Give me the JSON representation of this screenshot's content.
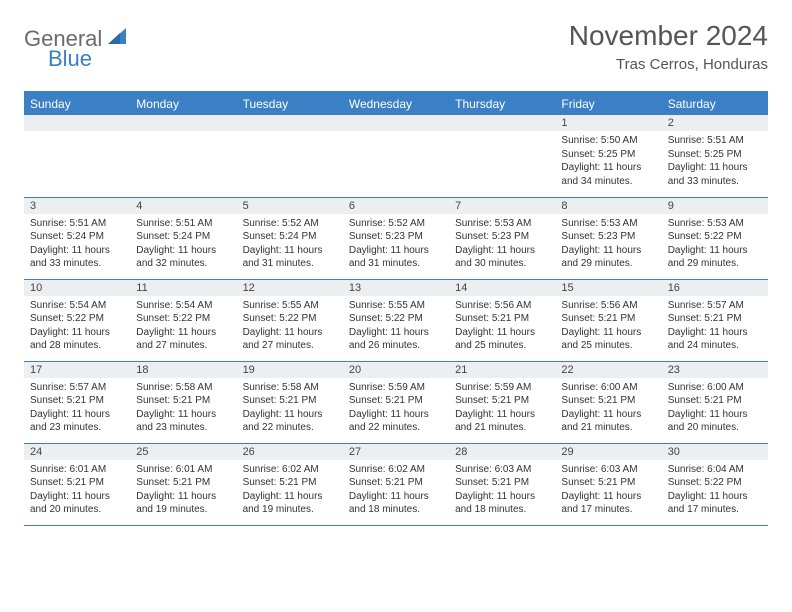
{
  "brand": {
    "part1": "General",
    "part2": "Blue"
  },
  "title": "November 2024",
  "location": "Tras Cerros, Honduras",
  "colors": {
    "accent": "#3b7fc4",
    "header_bg": "#3b7fc4",
    "header_text": "#ffffff",
    "daynum_bg": "#eceff1",
    "border": "#3b7fc4",
    "logo_gray": "#6b6b6b"
  },
  "weekdays": [
    "Sunday",
    "Monday",
    "Tuesday",
    "Wednesday",
    "Thursday",
    "Friday",
    "Saturday"
  ],
  "weeks": [
    [
      {
        "n": "",
        "lines": []
      },
      {
        "n": "",
        "lines": []
      },
      {
        "n": "",
        "lines": []
      },
      {
        "n": "",
        "lines": []
      },
      {
        "n": "",
        "lines": []
      },
      {
        "n": "1",
        "lines": [
          "Sunrise: 5:50 AM",
          "Sunset: 5:25 PM",
          "Daylight: 11 hours and 34 minutes."
        ]
      },
      {
        "n": "2",
        "lines": [
          "Sunrise: 5:51 AM",
          "Sunset: 5:25 PM",
          "Daylight: 11 hours and 33 minutes."
        ]
      }
    ],
    [
      {
        "n": "3",
        "lines": [
          "Sunrise: 5:51 AM",
          "Sunset: 5:24 PM",
          "Daylight: 11 hours and 33 minutes."
        ]
      },
      {
        "n": "4",
        "lines": [
          "Sunrise: 5:51 AM",
          "Sunset: 5:24 PM",
          "Daylight: 11 hours and 32 minutes."
        ]
      },
      {
        "n": "5",
        "lines": [
          "Sunrise: 5:52 AM",
          "Sunset: 5:24 PM",
          "Daylight: 11 hours and 31 minutes."
        ]
      },
      {
        "n": "6",
        "lines": [
          "Sunrise: 5:52 AM",
          "Sunset: 5:23 PM",
          "Daylight: 11 hours and 31 minutes."
        ]
      },
      {
        "n": "7",
        "lines": [
          "Sunrise: 5:53 AM",
          "Sunset: 5:23 PM",
          "Daylight: 11 hours and 30 minutes."
        ]
      },
      {
        "n": "8",
        "lines": [
          "Sunrise: 5:53 AM",
          "Sunset: 5:23 PM",
          "Daylight: 11 hours and 29 minutes."
        ]
      },
      {
        "n": "9",
        "lines": [
          "Sunrise: 5:53 AM",
          "Sunset: 5:22 PM",
          "Daylight: 11 hours and 29 minutes."
        ]
      }
    ],
    [
      {
        "n": "10",
        "lines": [
          "Sunrise: 5:54 AM",
          "Sunset: 5:22 PM",
          "Daylight: 11 hours and 28 minutes."
        ]
      },
      {
        "n": "11",
        "lines": [
          "Sunrise: 5:54 AM",
          "Sunset: 5:22 PM",
          "Daylight: 11 hours and 27 minutes."
        ]
      },
      {
        "n": "12",
        "lines": [
          "Sunrise: 5:55 AM",
          "Sunset: 5:22 PM",
          "Daylight: 11 hours and 27 minutes."
        ]
      },
      {
        "n": "13",
        "lines": [
          "Sunrise: 5:55 AM",
          "Sunset: 5:22 PM",
          "Daylight: 11 hours and 26 minutes."
        ]
      },
      {
        "n": "14",
        "lines": [
          "Sunrise: 5:56 AM",
          "Sunset: 5:21 PM",
          "Daylight: 11 hours and 25 minutes."
        ]
      },
      {
        "n": "15",
        "lines": [
          "Sunrise: 5:56 AM",
          "Sunset: 5:21 PM",
          "Daylight: 11 hours and 25 minutes."
        ]
      },
      {
        "n": "16",
        "lines": [
          "Sunrise: 5:57 AM",
          "Sunset: 5:21 PM",
          "Daylight: 11 hours and 24 minutes."
        ]
      }
    ],
    [
      {
        "n": "17",
        "lines": [
          "Sunrise: 5:57 AM",
          "Sunset: 5:21 PM",
          "Daylight: 11 hours and 23 minutes."
        ]
      },
      {
        "n": "18",
        "lines": [
          "Sunrise: 5:58 AM",
          "Sunset: 5:21 PM",
          "Daylight: 11 hours and 23 minutes."
        ]
      },
      {
        "n": "19",
        "lines": [
          "Sunrise: 5:58 AM",
          "Sunset: 5:21 PM",
          "Daylight: 11 hours and 22 minutes."
        ]
      },
      {
        "n": "20",
        "lines": [
          "Sunrise: 5:59 AM",
          "Sunset: 5:21 PM",
          "Daylight: 11 hours and 22 minutes."
        ]
      },
      {
        "n": "21",
        "lines": [
          "Sunrise: 5:59 AM",
          "Sunset: 5:21 PM",
          "Daylight: 11 hours and 21 minutes."
        ]
      },
      {
        "n": "22",
        "lines": [
          "Sunrise: 6:00 AM",
          "Sunset: 5:21 PM",
          "Daylight: 11 hours and 21 minutes."
        ]
      },
      {
        "n": "23",
        "lines": [
          "Sunrise: 6:00 AM",
          "Sunset: 5:21 PM",
          "Daylight: 11 hours and 20 minutes."
        ]
      }
    ],
    [
      {
        "n": "24",
        "lines": [
          "Sunrise: 6:01 AM",
          "Sunset: 5:21 PM",
          "Daylight: 11 hours and 20 minutes."
        ]
      },
      {
        "n": "25",
        "lines": [
          "Sunrise: 6:01 AM",
          "Sunset: 5:21 PM",
          "Daylight: 11 hours and 19 minutes."
        ]
      },
      {
        "n": "26",
        "lines": [
          "Sunrise: 6:02 AM",
          "Sunset: 5:21 PM",
          "Daylight: 11 hours and 19 minutes."
        ]
      },
      {
        "n": "27",
        "lines": [
          "Sunrise: 6:02 AM",
          "Sunset: 5:21 PM",
          "Daylight: 11 hours and 18 minutes."
        ]
      },
      {
        "n": "28",
        "lines": [
          "Sunrise: 6:03 AM",
          "Sunset: 5:21 PM",
          "Daylight: 11 hours and 18 minutes."
        ]
      },
      {
        "n": "29",
        "lines": [
          "Sunrise: 6:03 AM",
          "Sunset: 5:21 PM",
          "Daylight: 11 hours and 17 minutes."
        ]
      },
      {
        "n": "30",
        "lines": [
          "Sunrise: 6:04 AM",
          "Sunset: 5:22 PM",
          "Daylight: 11 hours and 17 minutes."
        ]
      }
    ]
  ]
}
